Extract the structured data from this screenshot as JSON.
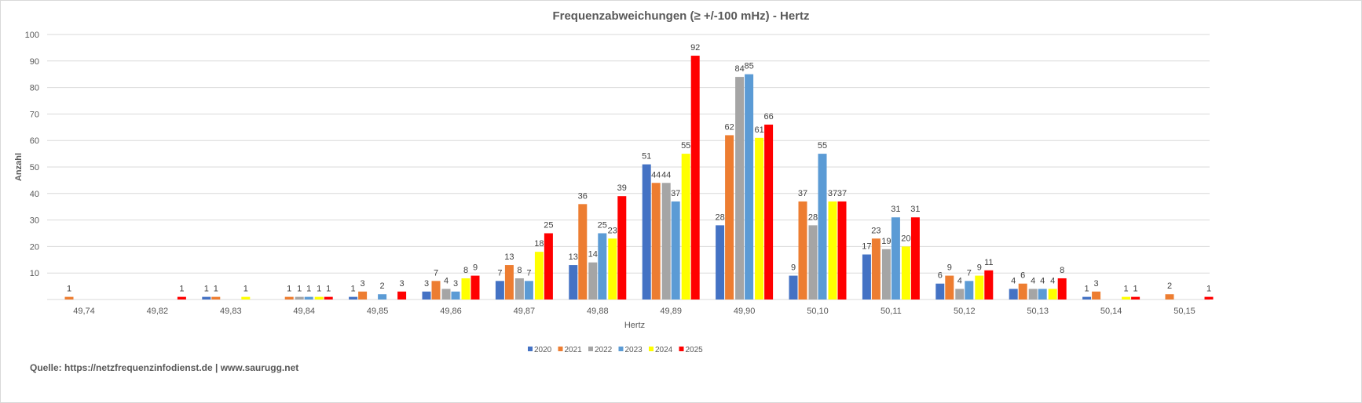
{
  "chart_data": {
    "type": "bar",
    "title": "Frequenzabweichungen (≥ +/-100 mHz) - Hertz",
    "xlabel": "Hertz",
    "ylabel": "Anzahl",
    "ylim": [
      0,
      100
    ],
    "yticks": [
      10,
      20,
      30,
      40,
      50,
      60,
      70,
      80,
      90,
      100
    ],
    "grid": true,
    "legend": "bottom",
    "categories": [
      "49,74",
      "49,82",
      "49,83",
      "49,84",
      "49,85",
      "49,86",
      "49,87",
      "49,88",
      "49,89",
      "49,90",
      "50,10",
      "50,11",
      "50,12",
      "50,13",
      "50,14",
      "50,15"
    ],
    "series": [
      {
        "name": "2020",
        "color": "#4472c4",
        "values": [
          0,
          0,
          1,
          0,
          1,
          3,
          7,
          13,
          51,
          28,
          9,
          17,
          6,
          4,
          1,
          0
        ]
      },
      {
        "name": "2021",
        "color": "#ed7d31",
        "values": [
          1,
          0,
          1,
          1,
          3,
          7,
          13,
          36,
          44,
          62,
          37,
          23,
          9,
          6,
          3,
          2
        ]
      },
      {
        "name": "2022",
        "color": "#a5a5a5",
        "values": [
          0,
          0,
          0,
          1,
          0,
          4,
          8,
          14,
          44,
          84,
          28,
          19,
          4,
          4,
          0,
          0
        ]
      },
      {
        "name": "2023",
        "color": "#5b9bd5",
        "values": [
          0,
          0,
          0,
          1,
          2,
          3,
          7,
          25,
          37,
          85,
          55,
          31,
          7,
          4,
          0,
          0
        ]
      },
      {
        "name": "2024",
        "color": "#ffff00",
        "values": [
          0,
          0,
          1,
          1,
          0,
          8,
          18,
          23,
          55,
          61,
          37,
          20,
          9,
          4,
          1,
          0
        ]
      },
      {
        "name": "2025",
        "color": "#ff0000",
        "values": [
          0,
          1,
          0,
          1,
          3,
          9,
          25,
          39,
          92,
          66,
          37,
          31,
          11,
          8,
          1,
          1
        ]
      }
    ]
  },
  "source": "Quelle: https://netzfrequenzinfodienst.de | www.saurugg.net"
}
